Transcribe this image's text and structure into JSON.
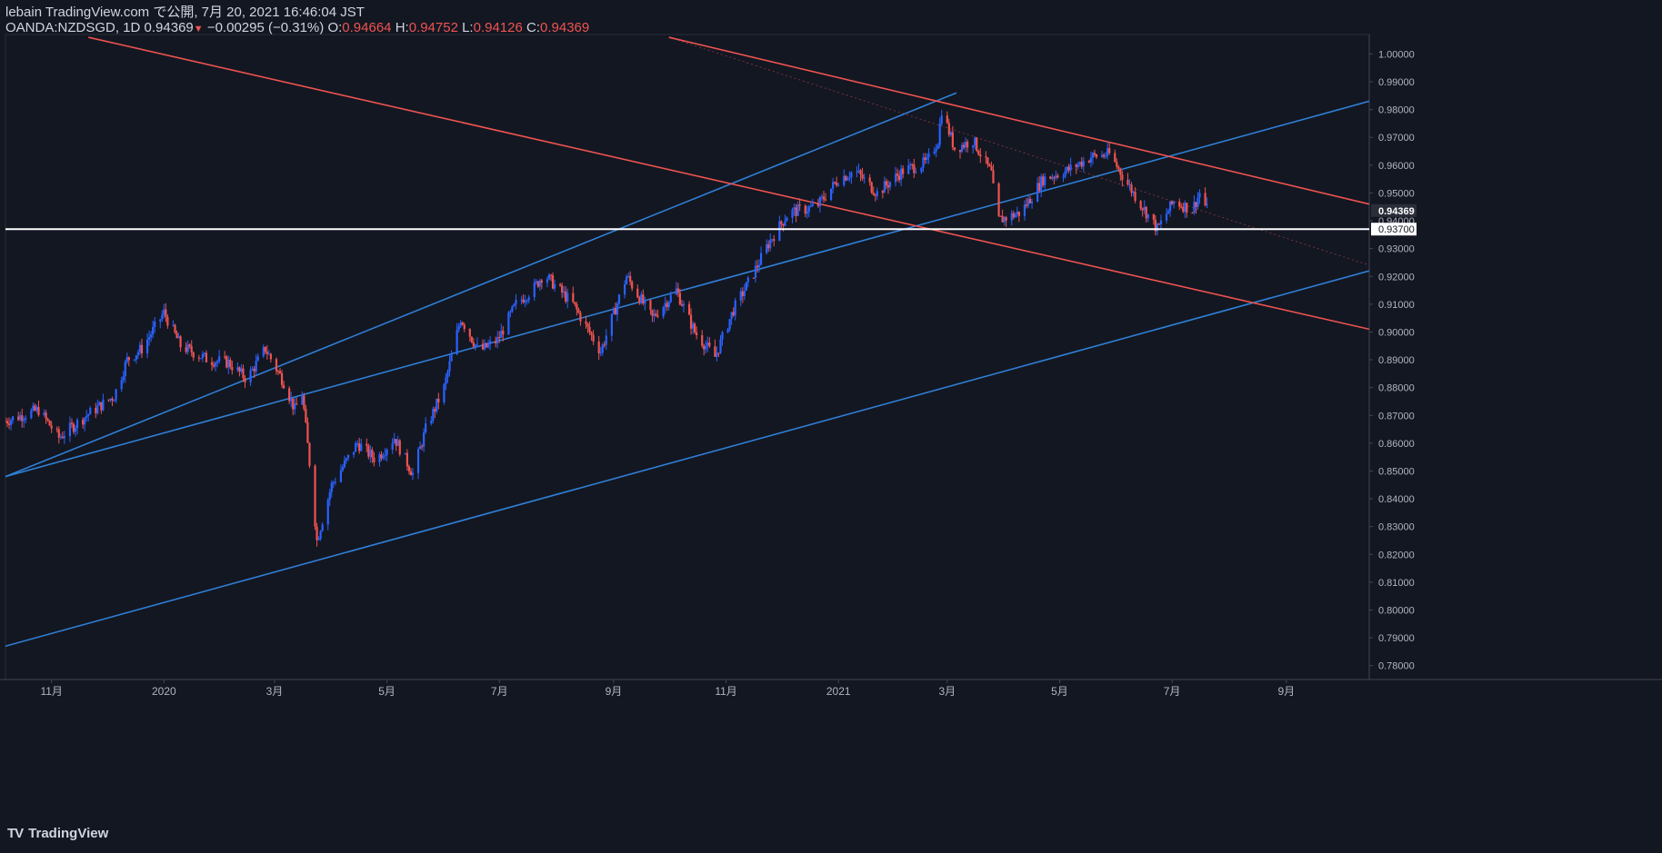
{
  "header": {
    "line1": "lebain TradingView.com で公開, 7月 20, 2021 16:46:04 JST",
    "symbol": "OANDA:NZDSGD, 1D",
    "last": "0.94369",
    "change": "−0.00295 (−0.31%)",
    "o_label": "O:",
    "o_value": "0.94664",
    "h_label": "H:",
    "h_value": "0.94752",
    "l_label": "L:",
    "l_value": "0.94126",
    "c_label": "C:",
    "c_value": "0.94369"
  },
  "watermark": {
    "text": "TradingView",
    "logo": "TV"
  },
  "colors": {
    "bg": "#131722",
    "up": "#2962ff",
    "down": "#ef5350",
    "channel_blue": "#2f7fd6",
    "channel_red": "#ef5350",
    "axis_text": "#b2b5be"
  },
  "chart_data": {
    "type": "candlestick",
    "symbol": "OANDA:NZDSGD",
    "interval": "1D",
    "ylim": [
      0.775,
      1.007
    ],
    "yticks": [
      0.78,
      0.79,
      0.8,
      0.81,
      0.82,
      0.83,
      0.84,
      0.85,
      0.86,
      0.87,
      0.88,
      0.89,
      0.9,
      0.91,
      0.92,
      0.93,
      0.94,
      0.95,
      0.96,
      0.97,
      0.98,
      0.99,
      1.0
    ],
    "ytick_labels": [
      "0.78000",
      "0.79000",
      "0.80000",
      "0.81000",
      "0.82000",
      "0.83000",
      "0.84000",
      "0.85000",
      "0.86000",
      "0.87000",
      "0.88000",
      "0.89000",
      "0.90000",
      "0.91000",
      "0.92000",
      "0.93000",
      "0.94000",
      "0.95000",
      "0.96000",
      "0.97000",
      "0.98000",
      "0.99000",
      "1.00000"
    ],
    "x_axis": {
      "start": "2019-10-07",
      "end": "2021-10-16"
    },
    "xticks": [
      {
        "date": "2019-11-01",
        "label": "11月"
      },
      {
        "date": "2020-01-01",
        "label": "2020"
      },
      {
        "date": "2020-03-01",
        "label": "3月"
      },
      {
        "date": "2020-05-01",
        "label": "5月"
      },
      {
        "date": "2020-07-01",
        "label": "7月"
      },
      {
        "date": "2020-09-01",
        "label": "9月"
      },
      {
        "date": "2020-11-01",
        "label": "11月"
      },
      {
        "date": "2021-01-01",
        "label": "2021"
      },
      {
        "date": "2021-03-01",
        "label": "3月"
      },
      {
        "date": "2021-05-01",
        "label": "5月"
      },
      {
        "date": "2021-07-01",
        "label": "7月"
      },
      {
        "date": "2021-09-01",
        "label": "9月"
      }
    ],
    "price_anchors": [
      [
        "2019-10-07",
        0.868
      ],
      [
        "2019-10-25",
        0.872
      ],
      [
        "2019-11-05",
        0.862
      ],
      [
        "2019-11-20",
        0.87
      ],
      [
        "2019-12-05",
        0.877
      ],
      [
        "2019-12-12",
        0.89
      ],
      [
        "2019-12-20",
        0.894
      ],
      [
        "2020-01-01",
        0.907
      ],
      [
        "2020-01-10",
        0.895
      ],
      [
        "2020-01-25",
        0.89
      ],
      [
        "2020-02-05",
        0.889
      ],
      [
        "2020-02-15",
        0.883
      ],
      [
        "2020-02-25",
        0.894
      ],
      [
        "2020-03-06",
        0.882
      ],
      [
        "2020-03-12",
        0.872
      ],
      [
        "2020-03-16",
        0.878
      ],
      [
        "2020-03-20",
        0.853
      ],
      [
        "2020-03-24",
        0.825
      ],
      [
        "2020-04-01",
        0.845
      ],
      [
        "2020-04-15",
        0.86
      ],
      [
        "2020-04-25",
        0.854
      ],
      [
        "2020-05-05",
        0.862
      ],
      [
        "2020-05-15",
        0.849
      ],
      [
        "2020-05-22",
        0.865
      ],
      [
        "2020-06-01",
        0.88
      ],
      [
        "2020-06-10",
        0.905
      ],
      [
        "2020-06-20",
        0.893
      ],
      [
        "2020-06-30",
        0.897
      ],
      [
        "2020-07-10",
        0.91
      ],
      [
        "2020-07-20",
        0.916
      ],
      [
        "2020-07-25",
        0.921
      ],
      [
        "2020-08-10",
        0.91
      ],
      [
        "2020-08-25",
        0.893
      ],
      [
        "2020-09-08",
        0.92
      ],
      [
        "2020-09-22",
        0.905
      ],
      [
        "2020-10-05",
        0.915
      ],
      [
        "2020-10-15",
        0.9
      ],
      [
        "2020-10-26",
        0.891
      ],
      [
        "2020-11-05",
        0.908
      ],
      [
        "2020-11-15",
        0.92
      ],
      [
        "2020-11-25",
        0.933
      ],
      [
        "2020-12-05",
        0.943
      ],
      [
        "2020-12-20",
        0.945
      ],
      [
        "2021-01-01",
        0.955
      ],
      [
        "2021-01-10",
        0.958
      ],
      [
        "2021-01-22",
        0.95
      ],
      [
        "2021-02-05",
        0.958
      ],
      [
        "2021-02-18",
        0.961
      ],
      [
        "2021-02-24",
        0.969
      ],
      [
        "2021-02-26",
        0.98
      ],
      [
        "2021-03-05",
        0.966
      ],
      [
        "2021-03-15",
        0.969
      ],
      [
        "2021-03-25",
        0.957
      ],
      [
        "2021-03-28",
        0.94
      ],
      [
        "2021-04-10",
        0.943
      ],
      [
        "2021-04-22",
        0.955
      ],
      [
        "2021-05-05",
        0.958
      ],
      [
        "2021-05-18",
        0.963
      ],
      [
        "2021-05-28",
        0.964
      ],
      [
        "2021-06-10",
        0.95
      ],
      [
        "2021-06-18",
        0.942
      ],
      [
        "2021-06-23",
        0.937
      ],
      [
        "2021-07-02",
        0.947
      ],
      [
        "2021-07-12",
        0.944
      ],
      [
        "2021-07-16",
        0.95
      ],
      [
        "2021-07-20",
        0.944
      ]
    ],
    "channels": [
      {
        "color": "#2f7fd6",
        "points": [
          [
            "2019-10-07",
            0.848
          ],
          [
            "2021-10-16",
            0.983
          ]
        ]
      },
      {
        "color": "#2f7fd6",
        "points": [
          [
            "2019-10-07",
            0.787
          ],
          [
            "2021-10-16",
            0.922
          ]
        ]
      },
      {
        "color": "#2f7fd6",
        "points": [
          [
            "2019-10-07",
            0.848
          ],
          [
            "2021-03-06",
            0.986
          ]
        ]
      },
      {
        "color": "#ef5350",
        "points": [
          [
            "2019-11-21",
            1.006
          ],
          [
            "2021-10-16",
            0.901
          ]
        ]
      },
      {
        "color": "#ef5350",
        "points": [
          [
            "2020-10-01",
            1.006
          ],
          [
            "2021-10-16",
            0.946
          ]
        ]
      }
    ],
    "midline": {
      "color": "#ef5350",
      "points": [
        [
          "2020-10-01",
          1.006
        ],
        [
          "2021-10-16",
          0.924
        ]
      ]
    },
    "horizontal_level": {
      "value": 0.937,
      "label": "0.93700",
      "color": "#ffffff"
    },
    "last_price": {
      "value": 0.94369,
      "label": "0.94369"
    },
    "secondary_label": {
      "value": 0.94,
      "label": "0.94000"
    }
  }
}
